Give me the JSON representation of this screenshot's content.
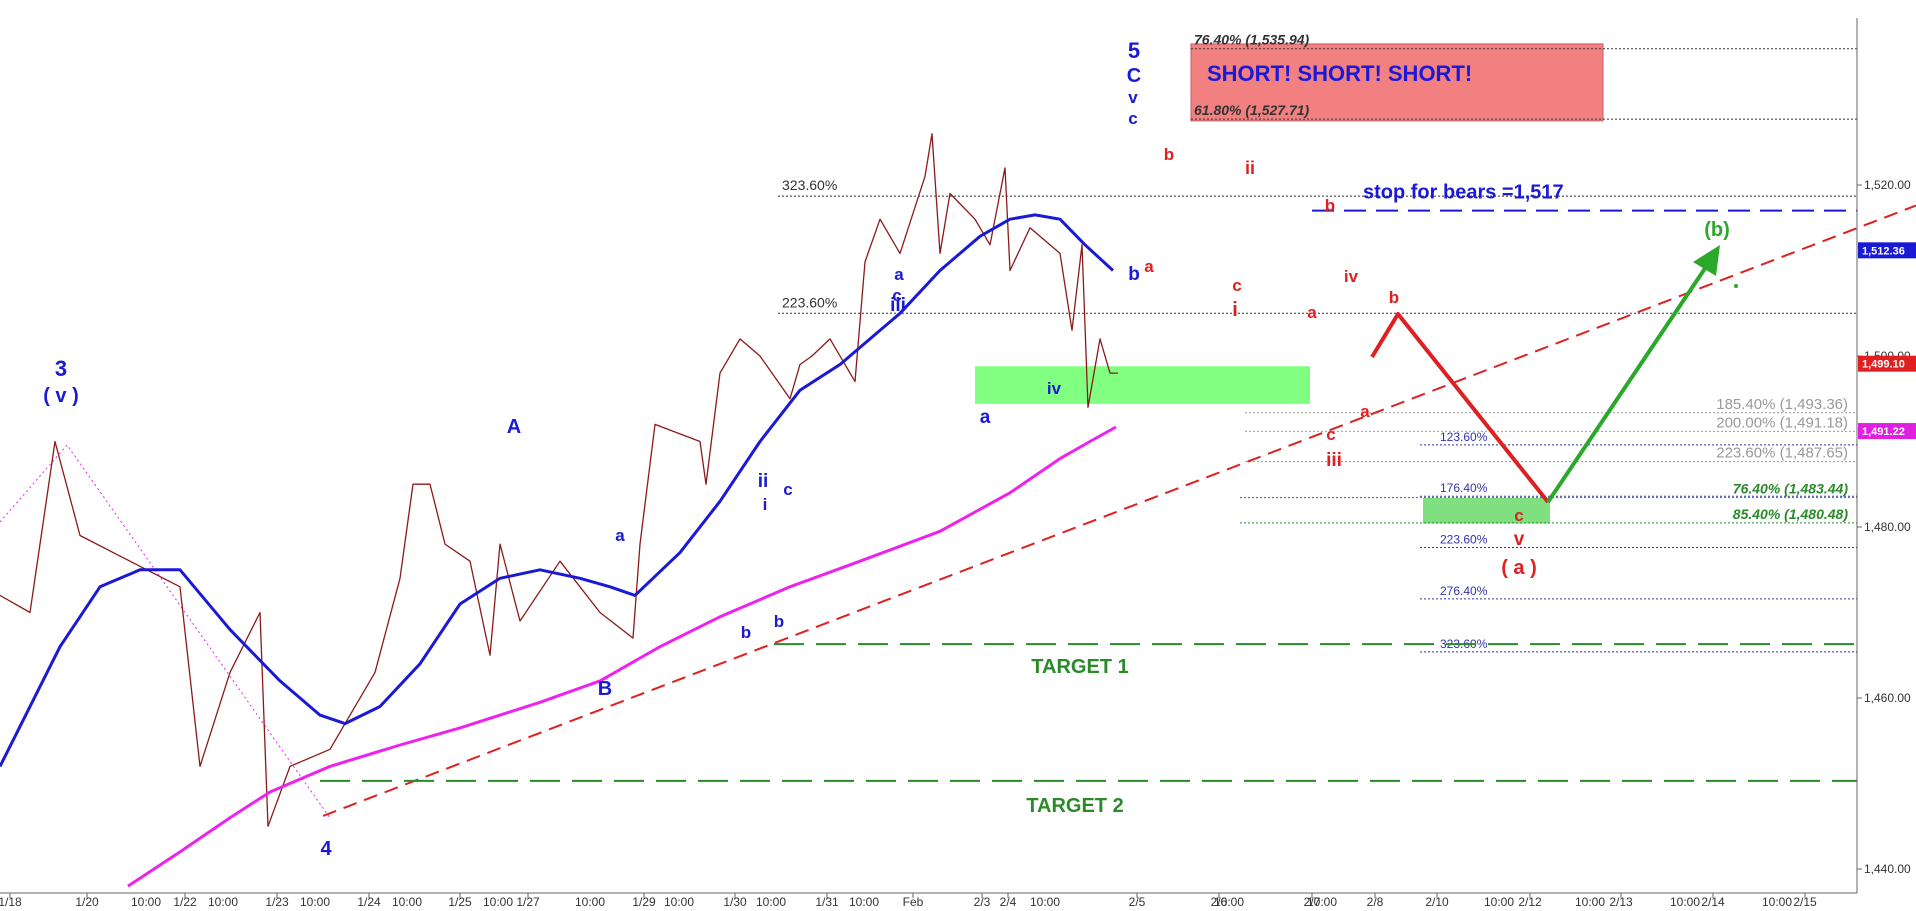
{
  "chart_data": {
    "type": "line",
    "title": "",
    "x_axis": {
      "date_ticks": [
        "1/18",
        "1/20",
        "1/22",
        "1/23",
        "1/24",
        "1/25",
        "1/27",
        "1/29",
        "1/30",
        "1/31",
        "Feb",
        "2/3",
        "2/4",
        "2/5",
        "2/6",
        "2/7",
        "2/8",
        "2/10",
        "2/12",
        "2/13",
        "2/14",
        "2/15"
      ],
      "time_ticks": [
        "10:00",
        "10:00",
        "10:00",
        "10:00",
        "10:00",
        "10:00",
        "10:00",
        "10:00",
        "10:00",
        "10:00",
        "10:00",
        "10:00",
        "10:00",
        "10:00",
        "10:00",
        "10:00",
        "10:00",
        "10:00",
        "10:00",
        "10:00"
      ]
    },
    "y_axis": {
      "side": "right",
      "range": [
        1438,
        1540
      ],
      "ticks": [
        "1,440.00",
        "1,460.00",
        "1,480.00",
        "1,500.00",
        "1,520.00"
      ]
    },
    "price_tags": [
      {
        "label": "1,512.36",
        "value": 1512.36,
        "color": "#1a1ad6"
      },
      {
        "label": "1,499.10",
        "value": 1499.1,
        "color": "#e02020"
      },
      {
        "label": "1,491.22",
        "value": 1491.22,
        "color": "#e020e0"
      }
    ],
    "series": [
      {
        "role": "price",
        "color": "#8b1a1a",
        "points": [
          [
            0,
            1472
          ],
          [
            30,
            1470
          ],
          [
            55,
            1490
          ],
          [
            80,
            1479
          ],
          [
            130,
            1476
          ],
          [
            180,
            1473
          ],
          [
            200,
            1452
          ],
          [
            230,
            1463
          ],
          [
            260,
            1470
          ],
          [
            268,
            1445
          ],
          [
            290,
            1452
          ],
          [
            330,
            1454
          ],
          [
            375,
            1463
          ],
          [
            400,
            1474
          ],
          [
            413,
            1485
          ],
          [
            430,
            1485
          ],
          [
            445,
            1478
          ],
          [
            470,
            1476
          ],
          [
            490,
            1465
          ],
          [
            500,
            1478
          ],
          [
            520,
            1469
          ],
          [
            560,
            1476
          ],
          [
            600,
            1470
          ],
          [
            633,
            1467
          ],
          [
            640,
            1478
          ],
          [
            655,
            1492
          ],
          [
            700,
            1490
          ],
          [
            706,
            1485
          ],
          [
            720,
            1498
          ],
          [
            740,
            1502
          ],
          [
            760,
            1500
          ],
          [
            790,
            1495
          ],
          [
            800,
            1499
          ],
          [
            812,
            1500
          ],
          [
            830,
            1502
          ],
          [
            855,
            1497
          ],
          [
            865,
            1511
          ],
          [
            880,
            1516
          ],
          [
            900,
            1512
          ],
          [
            925,
            1521
          ],
          [
            932,
            1526
          ],
          [
            940,
            1512
          ],
          [
            950,
            1519
          ],
          [
            975,
            1516
          ],
          [
            990,
            1513
          ],
          [
            1005,
            1522
          ],
          [
            1010,
            1510
          ],
          [
            1030,
            1515
          ],
          [
            1060,
            1512
          ],
          [
            1072,
            1503
          ],
          [
            1082,
            1513
          ],
          [
            1088,
            1494
          ],
          [
            1100,
            1502
          ],
          [
            1110,
            1498
          ],
          [
            1118,
            1498
          ]
        ]
      },
      {
        "role": "moving-average-short",
        "color": "#1a1ad6",
        "points": [
          [
            0,
            1452
          ],
          [
            60,
            1466
          ],
          [
            100,
            1473
          ],
          [
            140,
            1475
          ],
          [
            180,
            1475
          ],
          [
            230,
            1468
          ],
          [
            280,
            1462
          ],
          [
            320,
            1458
          ],
          [
            345,
            1457
          ],
          [
            380,
            1459
          ],
          [
            420,
            1464
          ],
          [
            460,
            1471
          ],
          [
            500,
            1474
          ],
          [
            540,
            1475
          ],
          [
            580,
            1474
          ],
          [
            610,
            1473
          ],
          [
            635,
            1472
          ],
          [
            680,
            1477
          ],
          [
            720,
            1483
          ],
          [
            760,
            1490
          ],
          [
            800,
            1496
          ],
          [
            840,
            1499
          ],
          [
            870,
            1502
          ],
          [
            900,
            1505
          ],
          [
            940,
            1510
          ],
          [
            980,
            1514
          ],
          [
            1010,
            1516
          ],
          [
            1035,
            1516.5
          ],
          [
            1060,
            1516
          ],
          [
            1085,
            1513
          ],
          [
            1113,
            1510
          ]
        ]
      },
      {
        "role": "moving-average-long",
        "color": "#ee22ee",
        "points": [
          [
            128,
            1438
          ],
          [
            180,
            1442
          ],
          [
            230,
            1446
          ],
          [
            270,
            1449
          ],
          [
            330,
            1452
          ],
          [
            400,
            1454.5
          ],
          [
            460,
            1456.5
          ],
          [
            540,
            1459.5
          ],
          [
            600,
            1462
          ],
          [
            660,
            1466
          ],
          [
            720,
            1469.5
          ],
          [
            790,
            1473
          ],
          [
            860,
            1476
          ],
          [
            940,
            1479.5
          ],
          [
            1010,
            1484
          ],
          [
            1060,
            1488
          ],
          [
            1090,
            1490
          ],
          [
            1116,
            1491.7
          ]
        ]
      }
    ],
    "levels": [
      {
        "label": "323.60%",
        "value": 1518.7,
        "color": "#333333"
      },
      {
        "label": "223.60%",
        "value": 1505.0,
        "color": "#333333"
      },
      {
        "label": "76.40% (1,535.94)",
        "value": 1535.94,
        "color": "#333333"
      },
      {
        "label": "61.80% (1,527.71)",
        "value": 1527.71,
        "color": "#333333"
      },
      {
        "label": "185.40% (1,493.36)",
        "value": 1493.36,
        "color": "#999999"
      },
      {
        "label": "200.00% (1,491.18)",
        "value": 1491.18,
        "color": "#999999"
      },
      {
        "label": "223.60% (1,487.65)",
        "value": 1487.65,
        "color": "#999999"
      },
      {
        "label": "76.40% (1,483.44)",
        "value": 1483.44,
        "color": "#2a8a2a"
      },
      {
        "label": "85.40% (1,480.48)",
        "value": 1480.48,
        "color": "#2a8a2a"
      },
      {
        "label": "123.60%",
        "value": 1489.6,
        "color": "#3333aa"
      },
      {
        "label": "176.40%",
        "value": 1483.6,
        "color": "#3333aa"
      },
      {
        "label": "223.60%",
        "value": 1477.6,
        "color": "#3333aa"
      },
      {
        "label": "276.40%",
        "value": 1471.6,
        "color": "#3333aa"
      },
      {
        "label": "323.60%",
        "value": 1465.4,
        "color": "#3333aa"
      }
    ],
    "zones": [
      {
        "role": "short-zone",
        "color": "#f28080",
        "text": "SHORT! SHORT! SHORT!",
        "top_value": 1536.5,
        "bottom_value": 1527.5
      },
      {
        "role": "support-zone",
        "color": "#80ff80",
        "top_value": 1498.8,
        "bottom_value": 1494.4
      },
      {
        "role": "target-zone",
        "color": "#80e080",
        "top_value": 1483.4,
        "bottom_value": 1480.4
      }
    ],
    "annotations": {
      "stop_line": {
        "text": "stop for bears =1,517",
        "value": 1517
      },
      "target_lines": [
        {
          "text": "TARGET 1",
          "value": 1466.3
        },
        {
          "text": "TARGET 2",
          "value": 1450.3
        }
      ],
      "wave_labels": [
        {
          "text": "3",
          "color": "#1a1ad6"
        },
        {
          "text": "( v )",
          "color": "#1a1ad6"
        },
        {
          "text": "4",
          "color": "#1a1ad6"
        },
        {
          "text": "A",
          "color": "#1a1ad6"
        },
        {
          "text": "B",
          "color": "#1a1ad6"
        },
        {
          "text": "a",
          "color": "#1a1ad6"
        },
        {
          "text": "b",
          "color": "#1a1ad6"
        },
        {
          "text": "b",
          "color": "#1a1ad6"
        },
        {
          "text": "ii",
          "color": "#1a1ad6"
        },
        {
          "text": "i",
          "color": "#1a1ad6"
        },
        {
          "text": "c",
          "color": "#1a1ad6"
        },
        {
          "text": "a",
          "color": "#1a1ad6"
        },
        {
          "text": "iii",
          "color": "#1a1ad6"
        },
        {
          "text": "c",
          "color": "#1a1ad6"
        },
        {
          "text": "a",
          "color": "#1a1ad6"
        },
        {
          "text": "iv",
          "color": "#1a1ad6"
        },
        {
          "text": "b",
          "color": "#1a1ad6"
        },
        {
          "text": "5",
          "color": "#1a1ad6"
        },
        {
          "text": "C",
          "color": "#1a1ad6"
        },
        {
          "text": "v",
          "color": "#1a1ad6"
        },
        {
          "text": "c",
          "color": "#1a1ad6"
        },
        {
          "text": "b",
          "color": "#e02020"
        },
        {
          "text": "a",
          "color": "#e02020"
        },
        {
          "text": "ii",
          "color": "#e02020"
        },
        {
          "text": "c",
          "color": "#e02020"
        },
        {
          "text": "i",
          "color": "#e02020"
        },
        {
          "text": "b",
          "color": "#e02020"
        },
        {
          "text": "a",
          "color": "#e02020"
        },
        {
          "text": "iv",
          "color": "#e02020"
        },
        {
          "text": "c",
          "color": "#e02020"
        },
        {
          "text": "iii",
          "color": "#e02020"
        },
        {
          "text": "a",
          "color": "#e02020"
        },
        {
          "text": "b",
          "color": "#e02020"
        },
        {
          "text": "c",
          "color": "#e02020"
        },
        {
          "text": "v",
          "color": "#e02020"
        },
        {
          "text": "( a )",
          "color": "#e02020"
        },
        {
          "text": "(b)",
          "color": "#2aa82a"
        }
      ]
    }
  }
}
